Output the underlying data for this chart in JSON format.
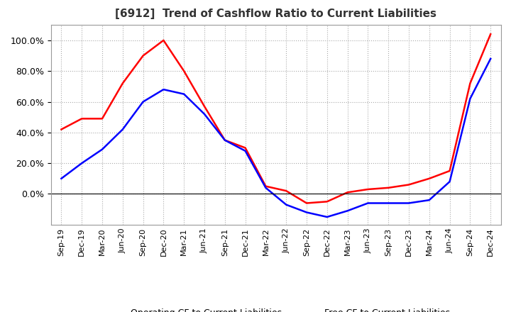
{
  "title": "[6912]  Trend of Cashflow Ratio to Current Liabilities",
  "x_labels": [
    "Sep-19",
    "Dec-19",
    "Mar-20",
    "Jun-20",
    "Sep-20",
    "Dec-20",
    "Mar-21",
    "Jun-21",
    "Sep-21",
    "Dec-21",
    "Mar-22",
    "Jun-22",
    "Sep-22",
    "Dec-22",
    "Mar-23",
    "Jun-23",
    "Sep-23",
    "Dec-23",
    "Mar-24",
    "Jun-24",
    "Sep-24",
    "Dec-24"
  ],
  "operating_cf": [
    0.42,
    0.49,
    0.49,
    0.72,
    0.9,
    1.0,
    0.8,
    0.57,
    0.35,
    0.3,
    0.05,
    0.02,
    -0.06,
    -0.05,
    0.01,
    0.03,
    0.04,
    0.06,
    0.1,
    0.15,
    0.72,
    1.04
  ],
  "free_cf": [
    0.1,
    0.2,
    0.29,
    0.42,
    0.6,
    0.68,
    0.65,
    0.52,
    0.35,
    0.28,
    0.04,
    -0.07,
    -0.12,
    -0.15,
    -0.11,
    -0.06,
    -0.06,
    -0.06,
    -0.04,
    0.08,
    0.62,
    0.88
  ],
  "operating_color": "#ff0000",
  "free_color": "#0000ff",
  "bg_color": "#ffffff",
  "plot_bg_color": "#ffffff",
  "grid_color": "#aaaaaa",
  "ylim": [
    -0.2,
    1.1
  ],
  "yticks": [
    0.0,
    0.2,
    0.4,
    0.6,
    0.8,
    1.0
  ],
  "legend_labels": [
    "Operating CF to Current Liabilities",
    "Free CF to Current Liabilities"
  ]
}
